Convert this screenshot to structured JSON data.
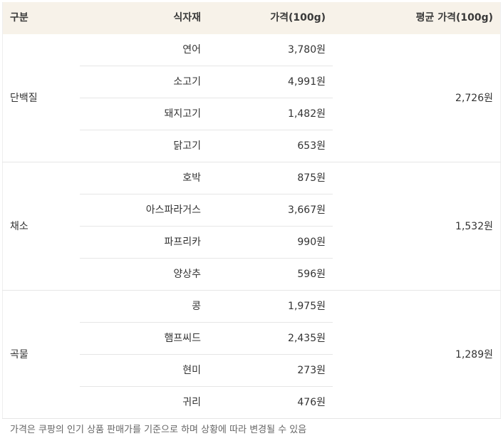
{
  "table": {
    "header": [
      "구분",
      "식자재",
      "가격(100g)",
      "평균 가격(100g)"
    ],
    "groups": [
      {
        "category": "단백질",
        "items": [
          [
            "연어",
            "3,780원"
          ],
          [
            "소고기",
            "4,991원"
          ],
          [
            "돼지고기",
            "1,482원"
          ],
          [
            "닭고기",
            "653원"
          ]
        ],
        "average": "2,726원"
      },
      {
        "category": "채소",
        "items": [
          [
            "호박",
            "875원"
          ],
          [
            "아스파라거스",
            "3,667원"
          ],
          [
            "파프리카",
            "990원"
          ],
          [
            "양상추",
            "596원"
          ]
        ],
        "average": "1,532원"
      },
      {
        "category": "곡물",
        "items": [
          [
            "콩",
            "1,975원"
          ],
          [
            "햄프씨드",
            "2,435원"
          ],
          [
            "현미",
            "273원"
          ],
          [
            "귀리",
            "476원"
          ]
        ],
        "average": "1,289원"
      }
    ]
  },
  "footnote": "가격은 쿠팡의 인기 상품 판매가를 기준으로 하며 상황에 따라 변경될 수 있음"
}
